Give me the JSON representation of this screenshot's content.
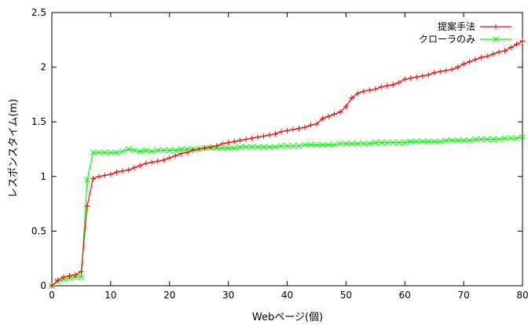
{
  "chart_data": {
    "type": "line",
    "title": "",
    "xlabel": "Webページ(個)",
    "ylabel": "レスポンスタイム(m)",
    "xlim": [
      0,
      80
    ],
    "ylim": [
      0,
      2.5
    ],
    "xticks": [
      0,
      10,
      20,
      30,
      40,
      50,
      60,
      70,
      80
    ],
    "xtick_labels": [
      "0",
      "10",
      "20",
      "30",
      "40",
      "50",
      "60",
      "70",
      "80"
    ],
    "yticks": [
      0,
      0.5,
      1,
      1.5,
      2,
      2.5
    ],
    "ytick_labels": [
      "0",
      "0.5",
      "1",
      "1.5",
      "2",
      "2.5"
    ],
    "grid": false,
    "legend_position": "top-right",
    "series": [
      {
        "name": "提案手法",
        "color": "#ff0000",
        "marker": "plus",
        "x": [
          0,
          1,
          2,
          3,
          4,
          5,
          6,
          7,
          8,
          9,
          10,
          11,
          12,
          13,
          14,
          15,
          16,
          17,
          18,
          19,
          20,
          21,
          22,
          23,
          24,
          25,
          26,
          27,
          28,
          29,
          30,
          31,
          32,
          33,
          34,
          35,
          36,
          37,
          38,
          39,
          40,
          41,
          42,
          43,
          44,
          45,
          46,
          47,
          48,
          49,
          50,
          51,
          52,
          53,
          54,
          55,
          56,
          57,
          58,
          59,
          60,
          61,
          62,
          63,
          64,
          65,
          66,
          67,
          68,
          69,
          70,
          71,
          72,
          73,
          74,
          75,
          76,
          77,
          78,
          79,
          80
        ],
        "y": [
          0.0,
          0.05,
          0.08,
          0.09,
          0.1,
          0.13,
          0.73,
          0.98,
          1.0,
          1.01,
          1.02,
          1.04,
          1.05,
          1.06,
          1.08,
          1.1,
          1.12,
          1.13,
          1.14,
          1.15,
          1.17,
          1.19,
          1.21,
          1.22,
          1.24,
          1.25,
          1.26,
          1.27,
          1.28,
          1.3,
          1.31,
          1.32,
          1.33,
          1.34,
          1.35,
          1.36,
          1.37,
          1.38,
          1.39,
          1.41,
          1.42,
          1.43,
          1.44,
          1.45,
          1.47,
          1.48,
          1.53,
          1.55,
          1.57,
          1.59,
          1.64,
          1.72,
          1.76,
          1.78,
          1.79,
          1.8,
          1.82,
          1.83,
          1.84,
          1.86,
          1.89,
          1.9,
          1.91,
          1.92,
          1.93,
          1.95,
          1.96,
          1.97,
          1.98,
          2.0,
          2.03,
          2.05,
          2.07,
          2.09,
          2.1,
          2.12,
          2.14,
          2.15,
          2.18,
          2.21,
          2.24
        ]
      },
      {
        "name": "クローラのみ",
        "color": "#00ff00",
        "marker": "x",
        "x": [
          0,
          1,
          2,
          3,
          4,
          5,
          6,
          7,
          8,
          9,
          10,
          11,
          12,
          13,
          14,
          15,
          16,
          17,
          18,
          19,
          20,
          21,
          22,
          23,
          24,
          25,
          26,
          27,
          28,
          29,
          30,
          31,
          32,
          33,
          34,
          35,
          36,
          37,
          38,
          39,
          40,
          41,
          42,
          43,
          44,
          45,
          46,
          47,
          48,
          49,
          50,
          51,
          52,
          53,
          54,
          55,
          56,
          57,
          58,
          59,
          60,
          61,
          62,
          63,
          64,
          65,
          66,
          67,
          68,
          69,
          70,
          71,
          72,
          73,
          74,
          75,
          76,
          77,
          78,
          79,
          80
        ],
        "y": [
          0.0,
          0.04,
          0.06,
          0.07,
          0.08,
          0.08,
          0.97,
          1.22,
          1.22,
          1.22,
          1.22,
          1.22,
          1.23,
          1.25,
          1.24,
          1.23,
          1.24,
          1.23,
          1.24,
          1.24,
          1.24,
          1.24,
          1.25,
          1.25,
          1.25,
          1.25,
          1.26,
          1.26,
          1.26,
          1.26,
          1.26,
          1.26,
          1.27,
          1.27,
          1.27,
          1.27,
          1.27,
          1.27,
          1.27,
          1.28,
          1.28,
          1.28,
          1.28,
          1.29,
          1.29,
          1.29,
          1.29,
          1.29,
          1.29,
          1.3,
          1.3,
          1.3,
          1.3,
          1.3,
          1.3,
          1.31,
          1.31,
          1.31,
          1.31,
          1.31,
          1.31,
          1.32,
          1.32,
          1.32,
          1.32,
          1.32,
          1.32,
          1.33,
          1.33,
          1.33,
          1.33,
          1.33,
          1.34,
          1.34,
          1.34,
          1.34,
          1.34,
          1.35,
          1.35,
          1.35,
          1.36
        ]
      }
    ]
  }
}
